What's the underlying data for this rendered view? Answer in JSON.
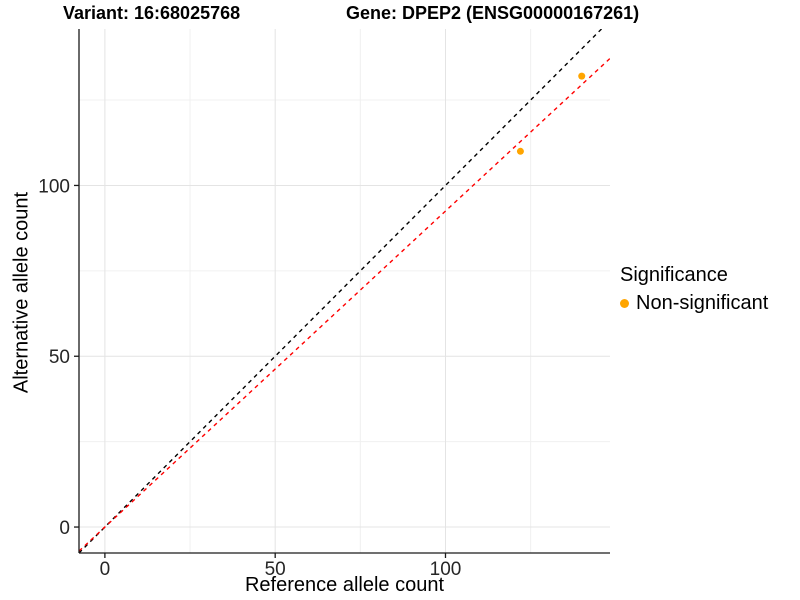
{
  "titles": {
    "left": "Variant: 16:68025768",
    "right": "Gene: DPEP2 (ENSG00000167261)"
  },
  "chart_data": {
    "type": "scatter",
    "xlabel": "Reference allele count",
    "ylabel": "Alternative allele count",
    "xlim": [
      -7.6,
      148.3
    ],
    "ylim": [
      -7.6,
      145.8
    ],
    "x_ticks": [
      0,
      50,
      100
    ],
    "y_ticks": [
      0,
      50,
      100
    ],
    "x_minor_ticks": [
      25,
      75,
      125
    ],
    "y_minor_ticks": [
      25,
      75,
      125
    ],
    "grid": true,
    "legend_position": "right",
    "points": [
      {
        "x": 122,
        "y": 110,
        "series": "Non-significant"
      },
      {
        "x": 140,
        "y": 132,
        "series": "Non-significant"
      }
    ],
    "lines": [
      {
        "name": "identity-line",
        "slope": 1,
        "intercept": 0,
        "color": "#000000",
        "style": "dashed"
      },
      {
        "name": "fit-line",
        "slope": 0.925,
        "intercept": 0,
        "color": "#FF0000",
        "style": "dashed"
      }
    ],
    "point_color": "#FFA500",
    "grid_major_color": "#E4E4E4",
    "grid_minor_color": "#F0F0F0",
    "axis_color": "#1a1a1a"
  },
  "legend": {
    "title": "Significance",
    "items": [
      {
        "label": "Non-significant",
        "color": "#FFA500"
      }
    ]
  }
}
